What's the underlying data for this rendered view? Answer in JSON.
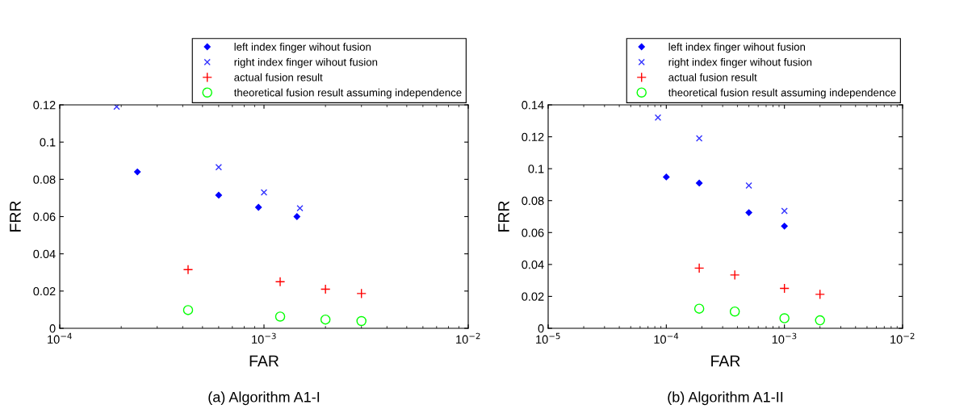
{
  "chart_data": [
    {
      "type": "scatter",
      "title": "(a) Algorithm A1-I",
      "xlabel": "FAR",
      "ylabel": "FRR",
      "log": "x",
      "legend": "top right",
      "grid": false,
      "xlim": [
        0.0001,
        0.01
      ],
      "xticks": [
        {
          "value": 0.0001,
          "label": "10$^{−4}$"
        },
        {
          "value": 0.001,
          "label": "10$^{−3}$"
        },
        {
          "value": 0.01,
          "label": "10$^{−2}$"
        }
      ],
      "ylim": [
        0,
        0.12
      ],
      "yticks": [
        0,
        0.02,
        0.04,
        0.06,
        0.08,
        0.1,
        0.12
      ],
      "series": [
        {
          "name": "left index finger wihout fusion",
          "color": "#0000ff",
          "marker": "diamond",
          "x": [
            0.00024,
            0.0006,
            0.00094,
            0.00145
          ],
          "values": [
            0.084,
            0.0715,
            0.065,
            0.06
          ]
        },
        {
          "name": "right index finger wihout fusion",
          "color": "#3333ff",
          "marker": "cross",
          "x": [
            0.00019,
            0.0006,
            0.001,
            0.0015
          ],
          "values": [
            0.119,
            0.0865,
            0.073,
            0.0645
          ]
        },
        {
          "name": "actual fusion result",
          "color": "#ff0000",
          "marker": "plus",
          "x": [
            0.000425,
            0.0012,
            0.002,
            0.003
          ],
          "values": [
            0.0315,
            0.025,
            0.021,
            0.0187
          ]
        },
        {
          "name": "theoretical fusion result assuming independence",
          "color": "#00ff00",
          "marker": "circle",
          "x": [
            0.000425,
            0.0012,
            0.002,
            0.003
          ],
          "values": [
            0.0098,
            0.0063,
            0.0047,
            0.0039
          ]
        }
      ]
    },
    {
      "type": "scatter",
      "title": "(b) Algorithm A1-II",
      "xlabel": "FAR",
      "ylabel": "FRR",
      "log": "x",
      "legend": "top right",
      "grid": false,
      "xlim": [
        1e-05,
        0.01
      ],
      "xticks": [
        {
          "value": 1e-05,
          "label": "10$^{−5}$"
        },
        {
          "value": 0.0001,
          "label": "10$^{−4}$"
        },
        {
          "value": 0.001,
          "label": "10$^{−3}$"
        },
        {
          "value": 0.01,
          "label": "10$^{−2}$"
        }
      ],
      "ylim": [
        0,
        0.14
      ],
      "yticks": [
        0,
        0.02,
        0.04,
        0.06,
        0.08,
        0.1,
        0.12,
        0.14
      ],
      "series": [
        {
          "name": "left index finger wihout fusion",
          "color": "#0000ff",
          "marker": "diamond",
          "x": [
            0.0001,
            0.00019,
            0.0005,
            0.001
          ],
          "values": [
            0.0948,
            0.091,
            0.0725,
            0.064
          ]
        },
        {
          "name": "right index finger wihout fusion",
          "color": "#3333ff",
          "marker": "cross",
          "x": [
            8.5e-05,
            0.00019,
            0.0005,
            0.001
          ],
          "values": [
            0.132,
            0.119,
            0.0895,
            0.0735
          ]
        },
        {
          "name": "actual fusion result",
          "color": "#ff0000",
          "marker": "plus",
          "x": [
            0.00019,
            0.00038,
            0.001,
            0.002
          ],
          "values": [
            0.0377,
            0.0334,
            0.025,
            0.0213
          ]
        },
        {
          "name": "theoretical fusion result assuming independence",
          "color": "#00ff00",
          "marker": "circle",
          "x": [
            0.00019,
            0.00038,
            0.001,
            0.002
          ],
          "values": [
            0.0123,
            0.0105,
            0.0063,
            0.005
          ]
        }
      ]
    }
  ]
}
